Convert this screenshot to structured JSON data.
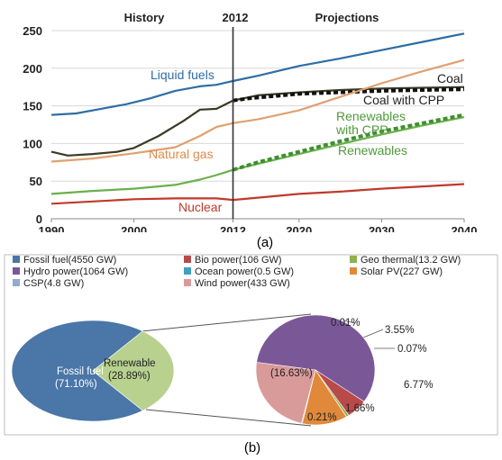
{
  "chart_data": [
    {
      "type": "line",
      "caption": "(a)",
      "x_ticks": [
        1990,
        2000,
        2012,
        2020,
        2030,
        2040
      ],
      "y_ticks": [
        0,
        50,
        100,
        150,
        200,
        250
      ],
      "xlim": [
        1990,
        2040
      ],
      "ylim": [
        0,
        250
      ],
      "grid": "horizontal",
      "divider_year": 2012,
      "region_labels": {
        "history": "History",
        "divider": "2012",
        "projections": "Projections"
      },
      "series": [
        {
          "name": "Liquid fuels",
          "color": "#2e6da4",
          "x": [
            1990,
            1993,
            1996,
            1999,
            2002,
            2005,
            2008,
            2010,
            2012,
            2015,
            2020,
            2025,
            2030,
            2035,
            2040
          ],
          "values": [
            138,
            140,
            146,
            152,
            160,
            170,
            176,
            178,
            183,
            190,
            203,
            213,
            224,
            235,
            246
          ]
        },
        {
          "name": "Coal",
          "color": "#3d3a24",
          "x": [
            1990,
            1992,
            1995,
            1998,
            2000,
            2003,
            2006,
            2008,
            2010,
            2012,
            2015,
            2020,
            2025,
            2030,
            2035,
            2040
          ],
          "values": [
            89,
            84,
            86,
            89,
            94,
            110,
            130,
            145,
            146,
            157,
            164,
            168,
            171,
            173,
            174,
            175
          ]
        },
        {
          "name": "Coal with CPP",
          "color": "#111111",
          "dashed": true,
          "x": [
            2012,
            2014,
            2016,
            2020,
            2025,
            2030,
            2035,
            2040
          ],
          "values": [
            157,
            160,
            162,
            166,
            168,
            170,
            171,
            172
          ]
        },
        {
          "name": "Natural gas",
          "color": "#e0a070",
          "x": [
            1990,
            1995,
            2000,
            2005,
            2008,
            2010,
            2012,
            2015,
            2020,
            2025,
            2030,
            2035,
            2040
          ],
          "values": [
            76,
            80,
            87,
            95,
            110,
            122,
            127,
            132,
            144,
            162,
            180,
            196,
            211
          ]
        },
        {
          "name": "Renewables",
          "color": "#6ab04c",
          "x": [
            1990,
            1995,
            2000,
            2005,
            2008,
            2010,
            2012,
            2015,
            2020,
            2025,
            2030,
            2035,
            2040
          ],
          "values": [
            33,
            37,
            40,
            45,
            52,
            58,
            65,
            73,
            86,
            99,
            112,
            124,
            135
          ]
        },
        {
          "name": "Renewables with CPP",
          "color": "#3f8f2f",
          "dashed": true,
          "x": [
            2012,
            2015,
            2020,
            2025,
            2030,
            2035,
            2040
          ],
          "values": [
            65,
            75,
            89,
            103,
            116,
            127,
            138
          ]
        },
        {
          "name": "Nuclear",
          "color": "#c0392b",
          "x": [
            1990,
            1995,
            2000,
            2005,
            2010,
            2012,
            2015,
            2020,
            2025,
            2030,
            2035,
            2040
          ],
          "values": [
            20,
            23,
            26,
            27,
            27,
            25,
            28,
            33,
            36,
            40,
            43,
            46
          ]
        }
      ],
      "labels": {
        "liquid_fuels": "Liquid fuels",
        "coal": "Coal",
        "coal_cpp": "Coal with CPP",
        "natural_gas": "Natural gas",
        "renewables_cpp_1": "Renewables",
        "renewables_cpp_2": "with CPP",
        "renewables": "Renewables",
        "nuclear": "Nuclear"
      }
    },
    {
      "type": "pie",
      "caption": "(b)",
      "legend": [
        {
          "label": "Fossil fuel(4550 GW)",
          "color": "#4a76a8"
        },
        {
          "label": "Bio power(106 GW)",
          "color": "#b94a4a"
        },
        {
          "label": "Geo thermal(13.2 GW)",
          "color": "#8fb04a"
        },
        {
          "label": "Hydro power(1064 GW)",
          "color": "#7a5898"
        },
        {
          "label": "Ocean power(0.5 GW)",
          "color": "#3fa0c0"
        },
        {
          "label": "Solar PV(227 GW)",
          "color": "#e0893a"
        },
        {
          "label": "CSP(4.8 GW)",
          "color": "#93a9d1"
        },
        {
          "label": "Wind power(433 GW)",
          "color": "#d99a9a"
        }
      ],
      "main_pie": {
        "slices": [
          {
            "name": "Fossil fuel",
            "value": 71.1,
            "label": "(71.10%)",
            "color": "#4a76a8"
          },
          {
            "name": "Renewable",
            "value": 28.89,
            "label": "(28.89%)",
            "color": "#b8d18f"
          }
        ]
      },
      "renewable_pie": {
        "slices": [
          {
            "name": "Hydro power",
            "value": 16.63,
            "label": "(16.63%)",
            "color": "#7a5898"
          },
          {
            "name": "Bio power",
            "value": 1.66,
            "label": "1.66%",
            "color": "#b94a4a"
          },
          {
            "name": "Geo thermal",
            "value": 0.21,
            "label": "0.21%",
            "color": "#8fb04a"
          },
          {
            "name": "Ocean power",
            "value": 0.01,
            "label": "0.01%",
            "color": "#3fa0c0"
          },
          {
            "name": "Solar PV",
            "value": 3.55,
            "label": "3.55%",
            "color": "#e0893a"
          },
          {
            "name": "CSP",
            "value": 0.07,
            "label": "0.07%",
            "color": "#93a9d1"
          },
          {
            "name": "Wind power",
            "value": 6.77,
            "label": "6.77%",
            "color": "#d99a9a"
          }
        ]
      }
    }
  ]
}
